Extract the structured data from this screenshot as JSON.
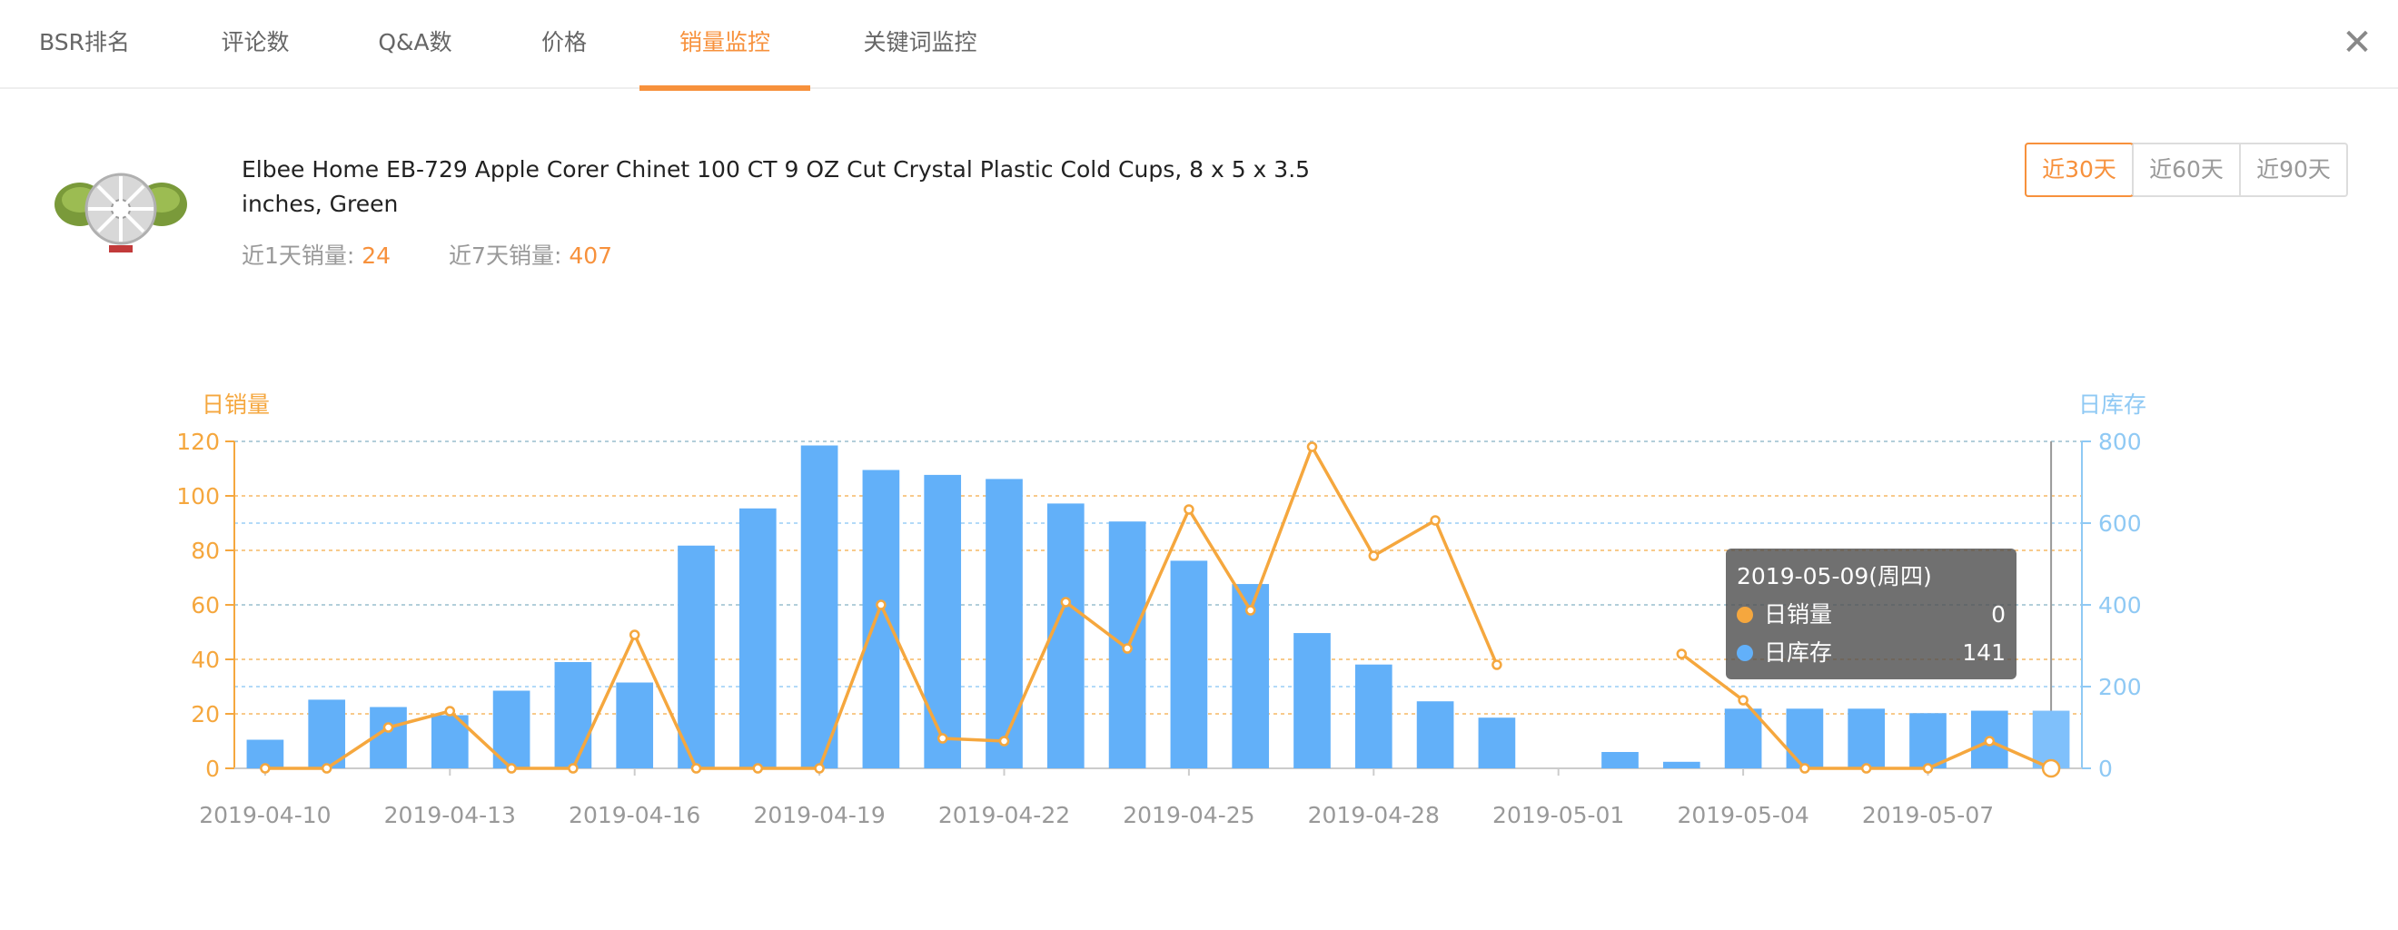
{
  "tabs": [
    {
      "label": "BSR排名"
    },
    {
      "label": "评论数"
    },
    {
      "label": "Q&A数"
    },
    {
      "label": "价格"
    },
    {
      "label": "销量监控"
    },
    {
      "label": "关键词监控"
    }
  ],
  "active_tab": "销量监控",
  "close_icon": "✕",
  "product": {
    "image_icon": "apple-corer-product-icon",
    "title": "Elbee Home EB-729 Apple Corer Chinet 100 CT 9 OZ Cut Crystal Plastic Cold Cups, 8 x 5 x 3.5 inches, Green",
    "sales_1d_label": "近1天销量: ",
    "sales_1d_value": "24",
    "sales_7d_label": "近7天销量: ",
    "sales_7d_value": "407"
  },
  "range_buttons": [
    {
      "label": "近30天",
      "active": true
    },
    {
      "label": "近60天",
      "active": false
    },
    {
      "label": "近90天",
      "active": false
    }
  ],
  "colors": {
    "accent": "#f7913c",
    "sales_line": "#f5a73e",
    "inventory_bar": "#62b0f9",
    "inventory_axis": "#8fc9f4"
  },
  "tooltip": {
    "date": "2019-05-09(周四)",
    "series": [
      {
        "name": "日销量",
        "value": "0",
        "color": "#f5a73e"
      },
      {
        "name": "日库存",
        "value": "141",
        "color": "#62b0f9"
      }
    ]
  },
  "chart_data": {
    "type": "bar",
    "y_left_label": "日销量",
    "y_right_label": "日库存",
    "y_left_range": [
      0,
      120
    ],
    "y_left_ticks": [
      0,
      20,
      40,
      60,
      80,
      100,
      120
    ],
    "y_right_range": [
      0,
      800
    ],
    "y_right_ticks": [
      0,
      200,
      400,
      600,
      800
    ],
    "x_tick_labels": [
      "2019-04-10",
      "2019-04-13",
      "2019-04-16",
      "2019-04-19",
      "2019-04-22",
      "2019-04-25",
      "2019-04-28",
      "2019-05-01",
      "2019-05-04",
      "2019-05-07"
    ],
    "categories": [
      "2019-04-10",
      "2019-04-11",
      "2019-04-12",
      "2019-04-13",
      "2019-04-14",
      "2019-04-15",
      "2019-04-16",
      "2019-04-17",
      "2019-04-18",
      "2019-04-19",
      "2019-04-20",
      "2019-04-21",
      "2019-04-22",
      "2019-04-23",
      "2019-04-24",
      "2019-04-25",
      "2019-04-26",
      "2019-04-27",
      "2019-04-28",
      "2019-04-29",
      "2019-04-30",
      "2019-05-01",
      "2019-05-02",
      "2019-05-03",
      "2019-05-04",
      "2019-05-05",
      "2019-05-06",
      "2019-05-07",
      "2019-05-08",
      "2019-05-09"
    ],
    "series": [
      {
        "name": "日库存",
        "type": "bar",
        "axis": "right",
        "values": [
          70,
          168,
          150,
          130,
          190,
          260,
          210,
          545,
          636,
          790,
          730,
          718,
          708,
          648,
          604,
          508,
          451,
          331,
          254,
          164,
          124,
          null,
          40,
          16,
          146,
          146,
          146,
          135,
          141,
          141
        ]
      },
      {
        "name": "日销量",
        "type": "line",
        "axis": "left",
        "values": [
          0,
          0,
          15,
          21,
          0,
          0,
          49,
          0,
          0,
          0,
          60,
          11,
          10,
          61,
          44,
          95,
          58,
          118,
          78,
          91,
          38,
          null,
          null,
          42,
          25,
          0,
          0,
          0,
          10,
          0
        ]
      }
    ],
    "legend": "none",
    "grid": true
  }
}
